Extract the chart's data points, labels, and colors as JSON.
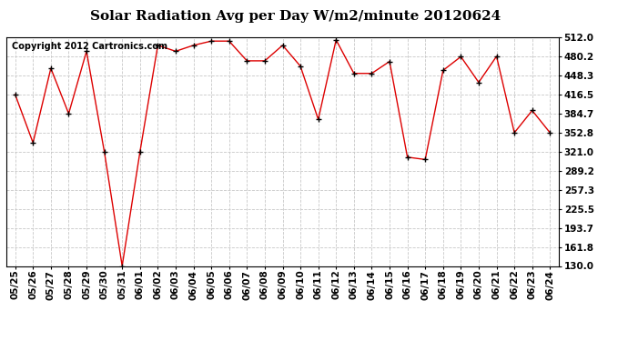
{
  "title": "Solar Radiation Avg per Day W/m2/minute 20120624",
  "copyright": "Copyright 2012 Cartronics.com",
  "dates": [
    "05/25",
    "05/26",
    "05/27",
    "05/28",
    "05/29",
    "05/30",
    "05/31",
    "06/01",
    "06/02",
    "06/03",
    "06/04",
    "06/05",
    "06/06",
    "06/07",
    "06/08",
    "06/09",
    "06/10",
    "06/11",
    "06/12",
    "06/13",
    "06/14",
    "06/15",
    "06/16",
    "06/17",
    "06/18",
    "06/19",
    "06/20",
    "06/21",
    "06/22",
    "06/23",
    "06/24"
  ],
  "values": [
    416.5,
    336.0,
    460.5,
    384.7,
    489.0,
    321.0,
    130.0,
    321.0,
    499.0,
    489.0,
    499.0,
    506.0,
    506.0,
    473.0,
    473.0,
    499.0,
    464.0,
    375.0,
    508.0,
    452.0,
    452.0,
    472.0,
    312.0,
    308.0,
    457.0,
    480.0,
    437.0,
    480.5,
    352.8,
    390.0,
    352.8
  ],
  "ylim": [
    130.0,
    512.0
  ],
  "yticks": [
    130.0,
    161.8,
    193.7,
    225.5,
    257.3,
    289.2,
    321.0,
    352.8,
    384.7,
    416.5,
    448.3,
    480.2,
    512.0
  ],
  "line_color": "#dd0000",
  "marker": "+",
  "marker_color": "#000000",
  "bg_color": "#ffffff",
  "grid_color": "#c8c8c8",
  "title_fontsize": 11,
  "copyright_fontsize": 7,
  "tick_fontsize": 7.5
}
